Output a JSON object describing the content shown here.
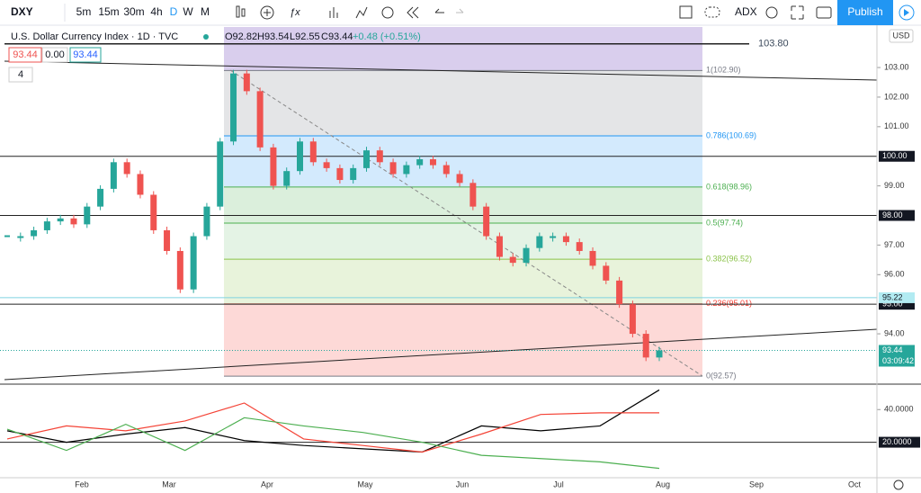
{
  "toolbar": {
    "symbol": "DXY",
    "intervals": [
      "5m",
      "15m",
      "30m",
      "4h",
      "D",
      "W",
      "M"
    ],
    "indicator": "ADX",
    "publish": "Publish"
  },
  "legend": {
    "title": "U.S. Dollar Currency Index · 1D · TVC",
    "open": "O92.82",
    "high": "H93.54",
    "low": "L92.55",
    "close": "C93.44",
    "change": "+0.48 (+0.51%)",
    "inputs": [
      "93.44",
      "0.00",
      "93.44"
    ],
    "collapsed": "4"
  },
  "chart_data": {
    "type": "candlestick",
    "closes": [
      97.3,
      97.3,
      97.5,
      97.8,
      97.9,
      97.7,
      98.3,
      98.9,
      99.8,
      99.4,
      98.7,
      97.5,
      96.8,
      95.5,
      97.3,
      98.3,
      100.5,
      102.8,
      102.2,
      100.3,
      99.0,
      99.5,
      100.5,
      99.8,
      99.6,
      99.2,
      99.6,
      100.2,
      99.8,
      99.4,
      99.7,
      99.9,
      99.7,
      99.4,
      99.1,
      98.3,
      97.3,
      96.6,
      96.4,
      96.9,
      97.3,
      97.3,
      97.1,
      96.8,
      96.3,
      95.8,
      95.0,
      94.0,
      93.2,
      93.44
    ],
    "up_color": "#26a69a",
    "down_color": "#ef5350",
    "ylim": [
      92.36,
      104.37
    ],
    "yticks": [
      {
        "value": 103,
        "label": "103.00"
      },
      {
        "value": 102,
        "label": "102.00"
      },
      {
        "value": 101,
        "label": "101.00"
      },
      {
        "value": 99,
        "label": "99.00"
      },
      {
        "value": 97,
        "label": "97.00"
      },
      {
        "value": 96,
        "label": "96.00"
      },
      {
        "value": 94,
        "label": "94.00"
      }
    ],
    "currency": "USD",
    "months": [
      "Feb",
      "Mar",
      "Apr",
      "May",
      "Jun",
      "Jul",
      "Aug",
      "Sep",
      "Oct"
    ],
    "fib_levels": [
      {
        "value": 102.9,
        "label": "1(102.90)",
        "color": "#787b86"
      },
      {
        "value": 100.69,
        "label": "0.786(100.69)",
        "color": "#2196f3"
      },
      {
        "value": 98.96,
        "label": "0.618(98.96)",
        "color": "#4caf50"
      },
      {
        "value": 97.74,
        "label": "0.5(97.74)",
        "color": "#4caf50"
      },
      {
        "value": 96.52,
        "label": "0.382(96.52)",
        "color": "#8bc34a"
      },
      {
        "value": 95.01,
        "label": "0.236(95.01)",
        "color": "#f44336"
      },
      {
        "value": 92.57,
        "label": "0(92.57)",
        "color": "#787b86"
      }
    ],
    "price_lines": [
      {
        "value": 103.8,
        "label": "103.80"
      },
      {
        "value": 100,
        "label": "100.00"
      },
      {
        "value": 98,
        "label": "98.00"
      },
      {
        "value": 95,
        "label": "95.00"
      },
      {
        "value": 95.22,
        "label": "95.22"
      }
    ],
    "last_price": {
      "value": 93.44,
      "label": "93.44"
    },
    "countdown": "03:09:42"
  },
  "indicator": {
    "type": "line",
    "ylim": [
      -1.7,
      55
    ],
    "yticks": [
      {
        "value": 40,
        "label": "40.0000"
      },
      {
        "value": 20,
        "label": "20.0000"
      }
    ],
    "series": [
      {
        "color": "#000000",
        "values": [
          27,
          20,
          25,
          29,
          21,
          18,
          16,
          14,
          30,
          27,
          30,
          52
        ]
      },
      {
        "color": "#f44336",
        "values": [
          22,
          30,
          27,
          33,
          44,
          22,
          18,
          14,
          25,
          37,
          38,
          38
        ]
      },
      {
        "color": "#4caf50",
        "values": [
          28,
          15,
          31,
          15,
          35,
          30,
          26,
          20,
          12,
          10,
          8,
          4
        ]
      }
    ]
  }
}
